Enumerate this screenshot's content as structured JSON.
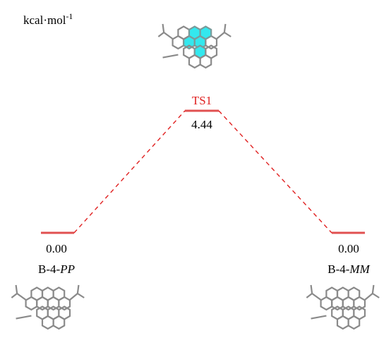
{
  "unit": {
    "text": "kcal·mol",
    "superscript": "-1"
  },
  "levels": [
    {
      "name": "B-4-",
      "name_italic": "PP",
      "energy": "0.00"
    },
    {
      "name": "TS1",
      "energy": "4.44"
    },
    {
      "name": "B-4-",
      "name_italic": "MM",
      "energy": "0.00"
    }
  ]
}
